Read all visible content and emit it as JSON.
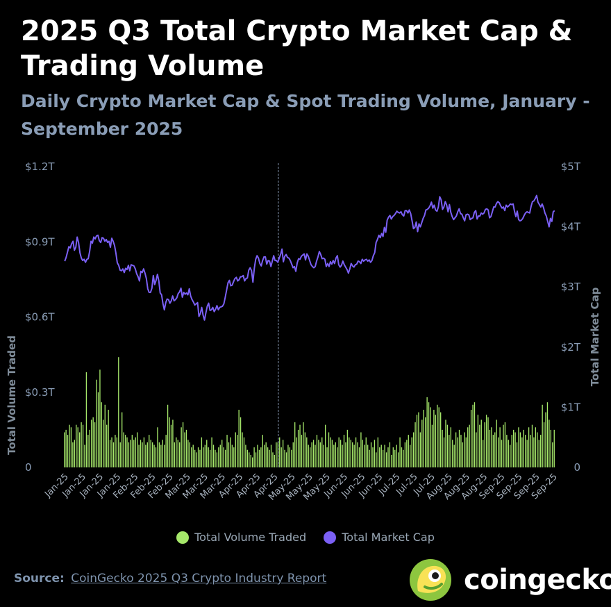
{
  "title": "2025 Q3 Total Crypto Market Cap & Trading Volume",
  "subtitle": "Daily Crypto Market Cap & Spot Trading Volume, January - September 2025",
  "source_label": "Source:",
  "source_link": "CoinGecko 2025 Q3 Crypto Industry Report",
  "brand": "coingecko",
  "colors": {
    "volume": "#a6e86a",
    "market_cap": "#7b60f5",
    "axis_text": "#8a9db6",
    "background": "#000000"
  },
  "chart_data": {
    "type": "bar+line",
    "x_tick_labels": [
      "Jan-25",
      "Jan-25",
      "Jan-25",
      "Jan-25",
      "Feb-25",
      "Feb-25",
      "Feb-25",
      "Mar-25",
      "Mar-25",
      "Mar-25",
      "Apr-25",
      "Apr-25",
      "Apr-25",
      "May-25",
      "May-25",
      "May-25",
      "Jun-25",
      "Jun-25",
      "Jun-25",
      "Jul-25",
      "Jul-25",
      "Jul-25",
      "Aug-25",
      "Aug-25",
      "Aug-25",
      "Sep-25",
      "Sep-25",
      "Sep-25",
      "Sep-25"
    ],
    "y_left": {
      "label": "Total Volume Traded",
      "ticks": [
        "0",
        "$0.3T",
        "$0.6T",
        "$0.9T",
        "$1.2T"
      ],
      "range": [
        0,
        1.2
      ],
      "unit": "T USD"
    },
    "y_right": {
      "label": "Total Market Cap",
      "ticks": [
        "0",
        "$1T",
        "$2T",
        "$3T",
        "$4T",
        "$5T"
      ],
      "range": [
        0,
        5
      ],
      "unit": "T USD"
    },
    "marker_date_index": 126,
    "series": [
      {
        "name": "Total Volume Traded",
        "kind": "bar",
        "axis": "left",
        "values": [
          0.14,
          0.15,
          0.13,
          0.17,
          0.16,
          0.1,
          0.11,
          0.17,
          0.16,
          0.14,
          0.18,
          0.17,
          0.09,
          0.38,
          0.13,
          0.15,
          0.19,
          0.2,
          0.18,
          0.35,
          0.3,
          0.39,
          0.26,
          0.19,
          0.25,
          0.17,
          0.23,
          0.11,
          0.12,
          0.1,
          0.13,
          0.12,
          0.44,
          0.1,
          0.22,
          0.14,
          0.13,
          0.12,
          0.1,
          0.11,
          0.13,
          0.11,
          0.12,
          0.14,
          0.09,
          0.11,
          0.1,
          0.12,
          0.09,
          0.1,
          0.13,
          0.11,
          0.1,
          0.09,
          0.08,
          0.16,
          0.1,
          0.09,
          0.11,
          0.09,
          0.13,
          0.25,
          0.2,
          0.17,
          0.19,
          0.1,
          0.12,
          0.11,
          0.1,
          0.16,
          0.18,
          0.14,
          0.15,
          0.11,
          0.1,
          0.08,
          0.09,
          0.07,
          0.06,
          0.08,
          0.07,
          0.12,
          0.08,
          0.09,
          0.11,
          0.08,
          0.07,
          0.12,
          0.09,
          0.07,
          0.06,
          0.08,
          0.09,
          0.11,
          0.08,
          0.07,
          0.13,
          0.1,
          0.12,
          0.09,
          0.08,
          0.14,
          0.13,
          0.23,
          0.2,
          0.14,
          0.12,
          0.09,
          0.07,
          0.06,
          0.05,
          0.04,
          0.08,
          0.06,
          0.09,
          0.07,
          0.08,
          0.13,
          0.09,
          0.1,
          0.08,
          0.07,
          0.09,
          0.06,
          0.05,
          0.1,
          0.1,
          0.12,
          0.08,
          0.11,
          0.07,
          0.06,
          0.09,
          0.08,
          0.07,
          0.1,
          0.18,
          0.12,
          0.15,
          0.17,
          0.13,
          0.18,
          0.14,
          0.12,
          0.09,
          0.08,
          0.1,
          0.11,
          0.09,
          0.13,
          0.11,
          0.1,
          0.12,
          0.09,
          0.17,
          0.08,
          0.14,
          0.12,
          0.11,
          0.09,
          0.1,
          0.08,
          0.12,
          0.11,
          0.09,
          0.13,
          0.1,
          0.15,
          0.12,
          0.11,
          0.1,
          0.09,
          0.12,
          0.1,
          0.08,
          0.14,
          0.11,
          0.09,
          0.12,
          0.09,
          0.07,
          0.1,
          0.08,
          0.11,
          0.06,
          0.12,
          0.08,
          0.09,
          0.07,
          0.09,
          0.06,
          0.08,
          0.1,
          0.05,
          0.08,
          0.07,
          0.09,
          0.06,
          0.12,
          0.08,
          0.07,
          0.1,
          0.11,
          0.13,
          0.09,
          0.12,
          0.14,
          0.18,
          0.21,
          0.22,
          0.14,
          0.19,
          0.23,
          0.2,
          0.28,
          0.26,
          0.24,
          0.17,
          0.23,
          0.21,
          0.25,
          0.24,
          0.22,
          0.15,
          0.12,
          0.19,
          0.17,
          0.13,
          0.16,
          0.11,
          0.09,
          0.14,
          0.12,
          0.15,
          0.13,
          0.1,
          0.14,
          0.12,
          0.16,
          0.17,
          0.23,
          0.25,
          0.26,
          0.14,
          0.21,
          0.17,
          0.19,
          0.11,
          0.18,
          0.21,
          0.2,
          0.15,
          0.16,
          0.13,
          0.14,
          0.19,
          0.12,
          0.16,
          0.11,
          0.17,
          0.18,
          0.13,
          0.11,
          0.09,
          0.13,
          0.15,
          0.14,
          0.1,
          0.16,
          0.14,
          0.12,
          0.15,
          0.13,
          0.11,
          0.16,
          0.13,
          0.17,
          0.12,
          0.16,
          0.14,
          0.11,
          0.13,
          0.25,
          0.18,
          0.22,
          0.26,
          0.19,
          0.15,
          0.1,
          0.15
        ]
      },
      {
        "name": "Total Market Cap",
        "kind": "line",
        "axis": "right",
        "values": [
          3.43,
          3.49,
          3.58,
          3.67,
          3.65,
          3.72,
          3.76,
          3.61,
          3.66,
          3.83,
          3.74,
          3.57,
          3.48,
          3.44,
          3.46,
          3.41,
          3.46,
          3.47,
          3.59,
          3.76,
          3.73,
          3.83,
          3.8,
          3.85,
          3.86,
          3.77,
          3.74,
          3.82,
          3.81,
          3.76,
          3.79,
          3.74,
          3.76,
          3.66,
          3.81,
          3.76,
          3.69,
          3.56,
          3.4,
          3.36,
          3.28,
          3.27,
          3.3,
          3.24,
          3.31,
          3.29,
          3.36,
          3.27,
          3.37,
          3.36,
          3.35,
          3.3,
          3.22,
          3.17,
          3.1,
          3.26,
          3.24,
          3.3,
          3.23,
          3.14,
          2.97,
          2.91,
          2.91,
          2.98,
          3.19,
          3.04,
          3.11,
          3.21,
          3.1,
          2.9,
          2.87,
          2.72,
          2.62,
          2.74,
          2.8,
          2.79,
          2.73,
          2.77,
          2.85,
          2.77,
          2.79,
          2.82,
          2.89,
          2.92,
          2.98,
          2.83,
          2.91,
          2.88,
          2.9,
          2.87,
          2.97,
          2.85,
          2.79,
          2.75,
          2.7,
          2.72,
          2.74,
          2.51,
          2.56,
          2.66,
          2.53,
          2.45,
          2.57,
          2.68,
          2.73,
          2.61,
          2.62,
          2.66,
          2.59,
          2.63,
          2.69,
          2.62,
          2.66,
          2.67,
          2.68,
          2.72,
          2.83,
          2.95,
          3.07,
          3.11,
          3.02,
          3.03,
          3.09,
          3.14,
          3.16,
          3.1,
          3.12,
          3.17,
          3.17,
          3.19,
          3.1,
          3.14,
          3.15,
          3.28,
          3.32,
          3.27,
          3.08,
          3.31,
          3.46,
          3.52,
          3.48,
          3.39,
          3.35,
          3.44,
          3.5,
          3.5,
          3.38,
          3.44,
          3.43,
          3.34,
          3.43,
          3.52,
          3.44,
          3.44,
          3.41,
          3.48,
          3.54,
          3.63,
          3.42,
          3.51,
          3.54,
          3.49,
          3.48,
          3.44,
          3.38,
          3.32,
          3.34,
          3.26,
          3.4,
          3.47,
          3.46,
          3.51,
          3.53,
          3.55,
          3.45,
          3.55,
          3.51,
          3.44,
          3.37,
          3.34,
          3.32,
          3.34,
          3.43,
          3.5,
          3.59,
          3.54,
          3.47,
          3.48,
          3.46,
          3.34,
          3.39,
          3.34,
          3.42,
          3.38,
          3.44,
          3.39,
          3.48,
          3.52,
          3.37,
          3.33,
          3.36,
          3.43,
          3.37,
          3.33,
          3.29,
          3.23,
          3.3,
          3.39,
          3.35,
          3.33,
          3.37,
          3.38,
          3.43,
          3.42,
          3.39,
          3.46,
          3.43,
          3.45,
          3.46,
          3.43,
          3.45,
          3.41,
          3.44,
          3.52,
          3.57,
          3.74,
          3.79,
          3.86,
          3.82,
          3.89,
          3.84,
          3.99,
          3.91,
          4.11,
          4.16,
          4.19,
          4.13,
          4.17,
          4.19,
          4.22,
          4.26,
          4.24,
          4.23,
          4.25,
          4.2,
          4.18,
          4.27,
          4.27,
          4.23,
          4.28,
          4.22,
          4.1,
          3.97,
          3.99,
          4.08,
          3.92,
          4.05,
          4.0,
          4.07,
          4.14,
          4.19,
          4.28,
          4.29,
          4.31,
          4.35,
          4.41,
          4.31,
          4.36,
          4.28,
          4.26,
          4.33,
          4.5,
          4.45,
          4.29,
          4.33,
          4.42,
          4.36,
          4.25,
          4.37,
          4.24,
          4.17,
          4.12,
          4.15,
          4.18,
          4.25,
          4.3,
          4.22,
          4.21,
          4.15,
          4.1,
          4.2,
          4.21,
          4.2,
          4.12,
          4.14,
          4.15,
          4.24,
          4.27,
          4.13,
          4.18,
          4.18,
          4.23,
          4.21,
          4.23,
          4.29,
          4.3,
          4.28,
          4.15,
          4.17,
          4.25,
          4.33,
          4.33,
          4.39,
          4.42,
          4.4,
          4.35,
          4.31,
          4.33,
          4.27,
          4.36,
          4.33,
          4.35,
          4.38,
          4.37,
          4.38,
          4.26,
          4.17,
          4.26,
          4.12,
          4.1,
          4.11,
          4.14,
          4.19,
          4.23,
          4.25,
          4.24,
          4.23,
          4.34,
          4.42,
          4.43,
          4.47,
          4.52,
          4.41,
          4.37,
          4.33,
          4.38,
          4.32,
          4.23,
          4.18,
          4.09,
          4.0,
          4.14,
          4.09,
          4.25,
          4.27
        ]
      }
    ],
    "grid": false,
    "legend_position": "bottom-center"
  }
}
